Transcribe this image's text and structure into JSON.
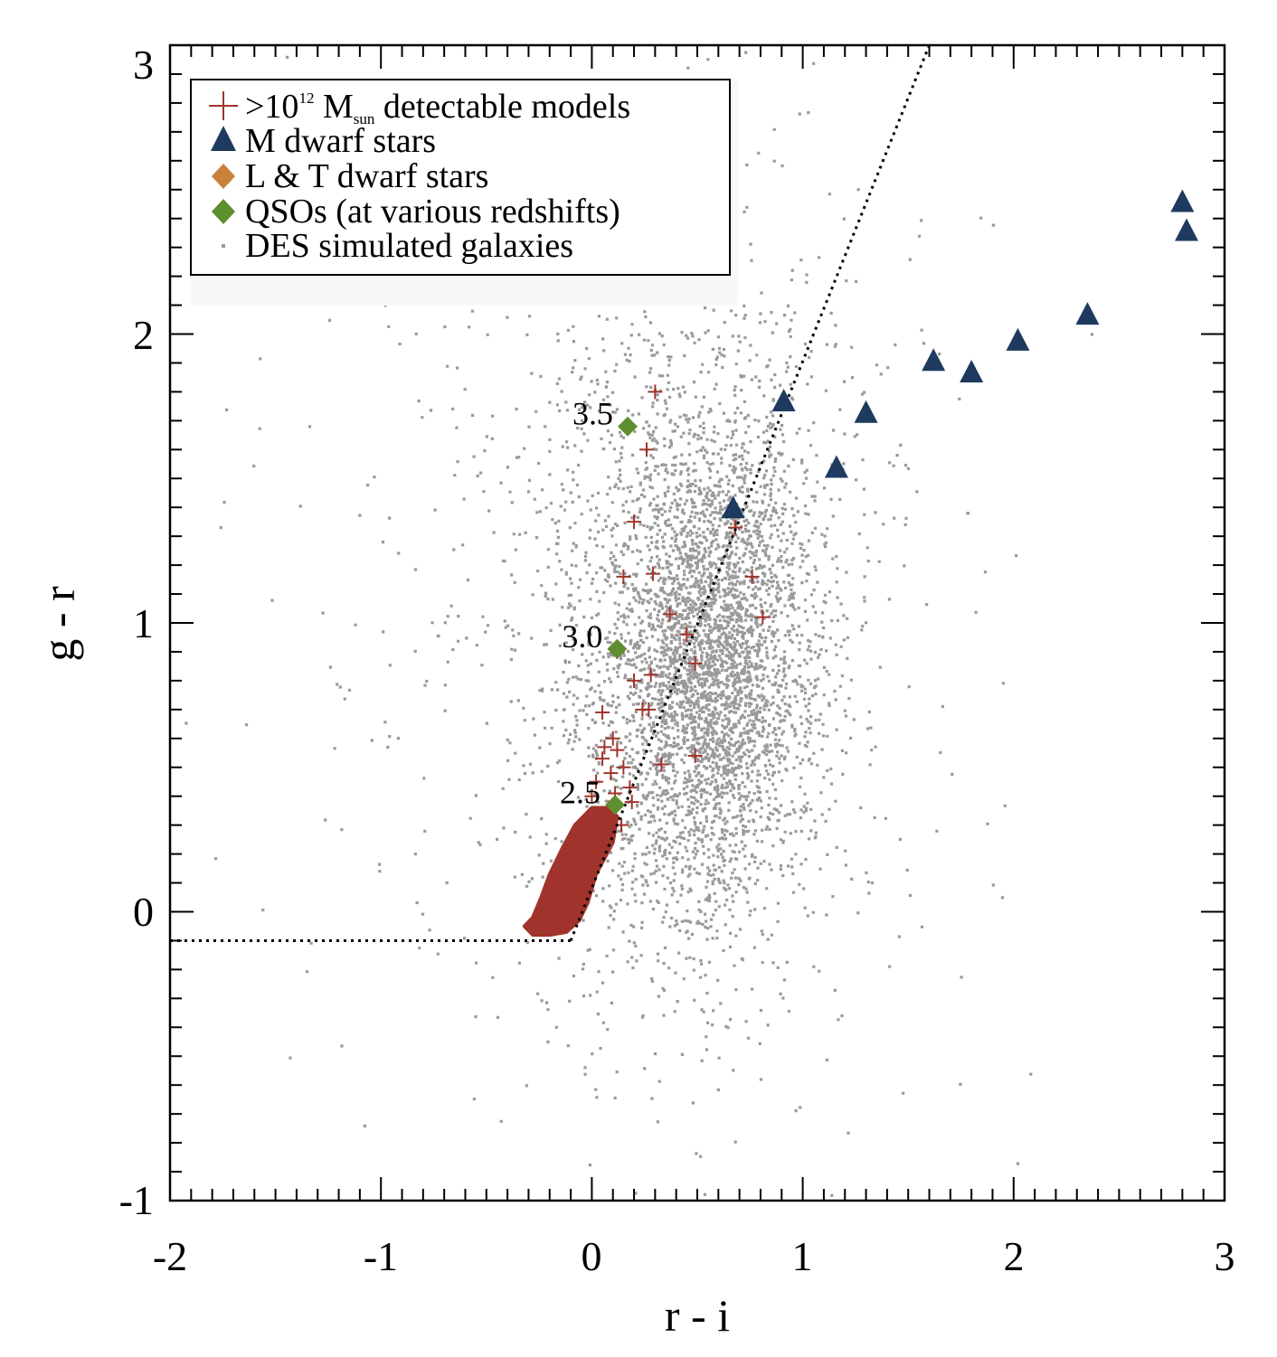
{
  "chart_data": {
    "type": "scatter",
    "xlabel": "r - i",
    "ylabel": "g - r",
    "xlim": [
      -2,
      3
    ],
    "ylim": [
      -1,
      3
    ],
    "x_ticks": [
      "-2",
      "-1",
      "0",
      "1",
      "2",
      "3"
    ],
    "y_ticks": [
      "-1",
      "0",
      "1",
      "2",
      "3"
    ],
    "grid": false,
    "legend_position": "top-left",
    "legend": [
      {
        "key": "models",
        "pre": ">10",
        "sup": "12",
        "mid": " M",
        "sub": "sun",
        "post": " detectable models",
        "marker": "plus",
        "color": "#A0342C"
      },
      {
        "key": "mdwarf",
        "label": "M dwarf stars",
        "marker": "triangle",
        "color": "#1F3A5F"
      },
      {
        "key": "ltdwarf",
        "label": "L & T dwarf stars",
        "marker": "diamond",
        "color": "#C8823C"
      },
      {
        "key": "qso",
        "label": "QSOs (at various redshifts)",
        "marker": "diamond",
        "color": "#5E8F2E"
      },
      {
        "key": "des",
        "label": "DES simulated galaxies",
        "marker": "dot",
        "color": "#9A9A9A"
      }
    ],
    "series": {
      "m_dwarf_stars": {
        "x": [
          0.67,
          0.91,
          1.16,
          1.3,
          1.62,
          1.8,
          2.02,
          2.35,
          2.8,
          2.82
        ],
        "y": [
          1.4,
          1.77,
          1.54,
          1.73,
          1.91,
          1.87,
          1.98,
          2.07,
          2.46,
          2.36
        ]
      },
      "qsos": {
        "x": [
          0.17,
          0.12,
          0.11
        ],
        "y": [
          1.68,
          0.91,
          0.37
        ],
        "labels": [
          "3.5",
          "3.0",
          "2.5"
        ]
      },
      "detectable_models_scattered": {
        "x": [
          0.3,
          0.26,
          0.2,
          0.68,
          0.15,
          0.29,
          0.76,
          0.37,
          0.81,
          0.45,
          0.12,
          0.2,
          0.28,
          0.24,
          0.49,
          0.05,
          0.27,
          0.1,
          0.06,
          0.12,
          0.15,
          0.09,
          0.05,
          0.49,
          0.33,
          0.18,
          0.02,
          0.11,
          0.19,
          0.08,
          0.0,
          0.04,
          0.14
        ],
        "y": [
          1.8,
          1.6,
          1.35,
          1.33,
          1.16,
          1.17,
          1.16,
          1.03,
          1.02,
          0.96,
          0.9,
          0.8,
          0.82,
          0.7,
          0.86,
          0.69,
          0.7,
          0.6,
          0.57,
          0.56,
          0.5,
          0.48,
          0.53,
          0.54,
          0.51,
          0.43,
          0.45,
          0.41,
          0.38,
          0.36,
          0.4,
          0.33,
          0.3
        ]
      },
      "detectable_models_cluster": {
        "description_free_region": true,
        "x_range": [
          -0.32,
          0.12
        ],
        "y_range": [
          -0.08,
          0.36
        ]
      },
      "des_simulated_galaxies": {
        "count": 5200,
        "center": [
          0.55,
          0.85
        ]
      }
    },
    "reference_lines": {
      "horizontal": {
        "x": [
          -2,
          -0.1
        ],
        "y": [
          -0.1,
          -0.1
        ]
      },
      "diagonal": {
        "x": [
          -0.1,
          1.6
        ],
        "y": [
          -0.1,
          3.0
        ]
      }
    }
  }
}
